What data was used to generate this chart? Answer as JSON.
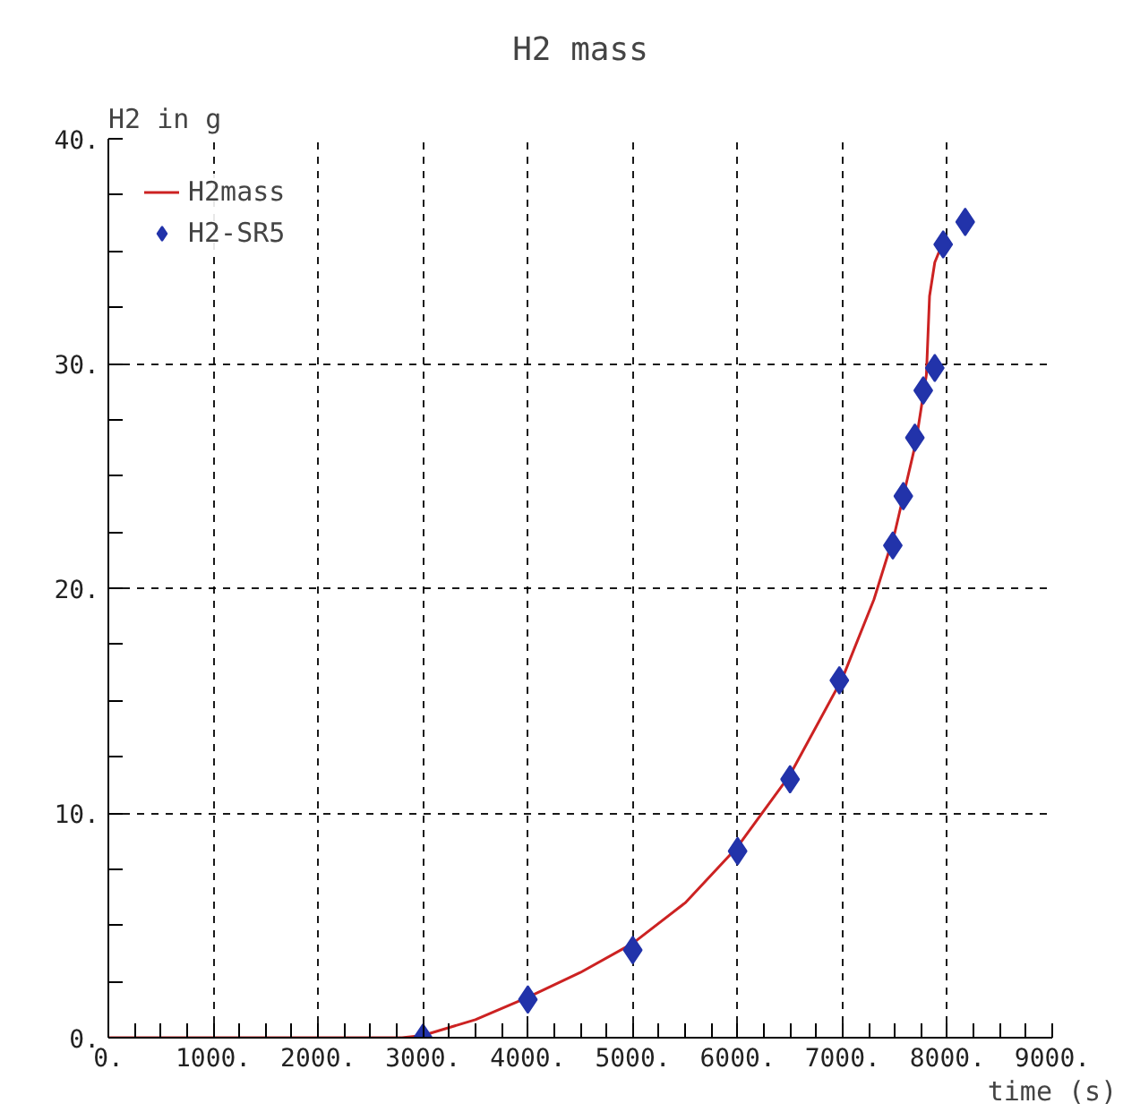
{
  "chart_data": {
    "type": "line",
    "title": "H2 mass",
    "xlabel": "time (s)",
    "ylabel": "H2 in g",
    "xlim": [
      0,
      9000
    ],
    "ylim": [
      0,
      40
    ],
    "xticks": [
      {
        "value": 0,
        "label": "0."
      },
      {
        "value": 1000,
        "label": "1000."
      },
      {
        "value": 2000,
        "label": "2000."
      },
      {
        "value": 3000,
        "label": "3000."
      },
      {
        "value": 4000,
        "label": "4000."
      },
      {
        "value": 5000,
        "label": "5000."
      },
      {
        "value": 6000,
        "label": "6000."
      },
      {
        "value": 7000,
        "label": "7000."
      },
      {
        "value": 8000,
        "label": "8000."
      },
      {
        "value": 9000,
        "label": "9000."
      }
    ],
    "yticks": [
      {
        "value": 0,
        "label": "0."
      },
      {
        "value": 10,
        "label": "10."
      },
      {
        "value": 20,
        "label": "20."
      },
      {
        "value": 30,
        "label": "30."
      },
      {
        "value": 40,
        "label": "40."
      }
    ],
    "grid": true,
    "legend": "top left",
    "series": [
      {
        "name": "H2mass",
        "color": "#cc2222",
        "line_style": "solid",
        "marker": "none",
        "x": [
          0,
          2800,
          3000,
          3500,
          4000,
          4500,
          5000,
          5500,
          6000,
          6500,
          7000,
          7300,
          7500,
          7700,
          7800,
          7830,
          7880,
          7950
        ],
        "values": [
          0,
          0,
          0.1,
          0.8,
          1.8,
          2.9,
          4.2,
          6.0,
          8.5,
          11.7,
          16,
          19.5,
          22.5,
          26.5,
          29.5,
          33,
          34.5,
          35.3
        ]
      },
      {
        "name": "H2-SR5",
        "type": "scatter",
        "color": "#2233aa",
        "marker": "diamond",
        "x": [
          3000,
          4000,
          5000,
          6000,
          6500,
          6970,
          7480,
          7580,
          7690,
          7770,
          7880,
          7960,
          8170
        ],
        "values": [
          0,
          1.7,
          3.9,
          8.3,
          11.5,
          15.9,
          21.9,
          24.1,
          26.7,
          28.8,
          29.8,
          35.3,
          36.3
        ]
      }
    ]
  }
}
